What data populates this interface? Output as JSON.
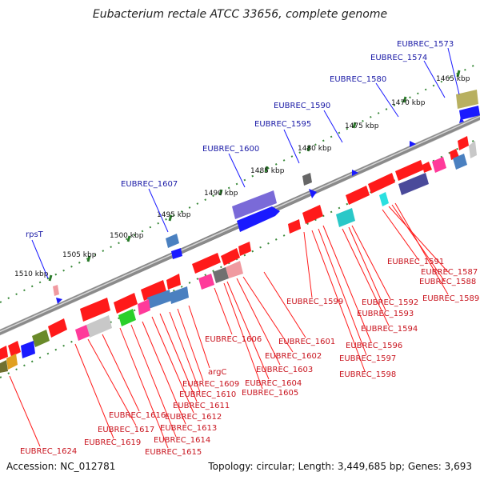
{
  "title": "Eubacterium rectale ATCC 33656, complete genome",
  "footer": {
    "accession": "Accession: NC_012781",
    "summary": "Topology: circular; Length: 3,449,685 bp; Genes: 3,693"
  },
  "ticks": [
    "1465 kbp",
    "1470 kbp",
    "1475 kbp",
    "1480 kbp",
    "1485 kbp",
    "1490 kbp",
    "1495 kbp",
    "1500 kbp",
    "1505 kbp",
    "1510 kbp"
  ],
  "outer_labels": [
    "EUBREC_1573",
    "EUBREC_1574",
    "EUBREC_1580",
    "EUBREC_1590",
    "EUBREC_1595",
    "EUBREC_1600",
    "EUBREC_1607",
    "rpsT"
  ],
  "inner_labels": [
    "EUBREC_1591",
    "EUBREC_1587",
    "EUBREC_1588",
    "EUBREC_1589",
    "EUBREC_1592",
    "EUBREC_1593",
    "EUBREC_1594",
    "EUBREC_1596",
    "EUBREC_1597",
    "EUBREC_1598",
    "EUBREC_1599",
    "EUBREC_1601",
    "EUBREC_1602",
    "EUBREC_1603",
    "EUBREC_1604",
    "EUBREC_1605",
    "EUBREC_1606",
    "argC",
    "EUBREC_1609",
    "EUBREC_1610",
    "EUBREC_1611",
    "EUBREC_1612",
    "EUBREC_1613",
    "EUBREC_1614",
    "EUBREC_1615",
    "EUBREC_1616",
    "EUBREC_1617",
    "EUBREC_1619",
    "EUBREC_1624"
  ],
  "colors": {
    "backbone": "#7a7a7a",
    "forward_gene": "#1a1aff",
    "reverse_gene": "#ff1a1a",
    "outer_label": "#1a1aa6",
    "inner_label": "#c8141e",
    "dotted_ring": "#3a8a3a"
  }
}
